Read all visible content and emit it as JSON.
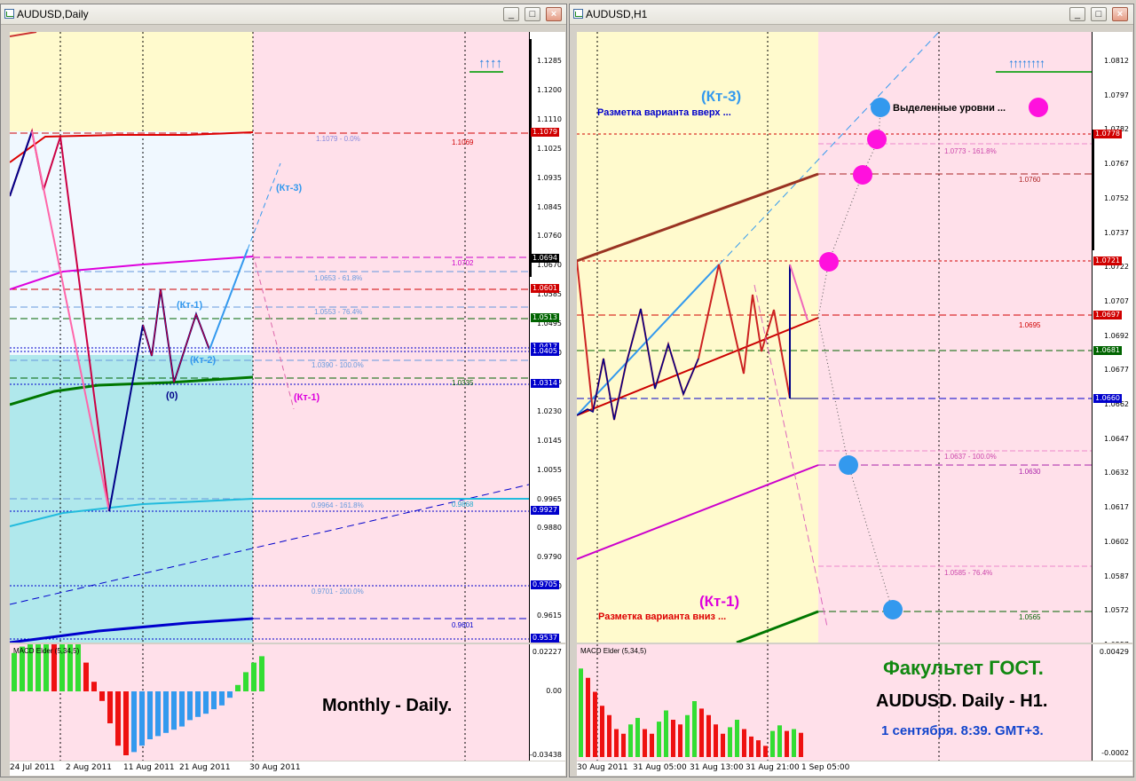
{
  "colors": {
    "pink_bg": "#ffe0ea",
    "yellow_bg": "#fffacd",
    "blue_bg": "#f0f8ff",
    "cyan_bg": "#b0e8ec",
    "window_frame": "#d4d0c8"
  },
  "left": {
    "title": "AUDUSD,Daily",
    "y_labels": [
      "1.1285",
      "1.1200",
      "1.1110",
      "1.1025",
      "1.0935",
      "1.0845",
      "1.0760",
      "1.0670",
      "1.0585",
      "1.0495",
      "1.0410",
      "1.0320",
      "1.0230",
      "1.0145",
      "1.0055",
      "0.9965",
      "0.9880",
      "0.9790",
      "0.9700",
      "0.9615",
      "0.9525"
    ],
    "price_boxes": [
      {
        "value": "1.1079",
        "color": "#d00000"
      },
      {
        "value": "1.0694",
        "color": "#000000"
      },
      {
        "value": "1.0601",
        "color": "#d00000"
      },
      {
        "value": "1.0513",
        "color": "#006400"
      },
      {
        "value": "1.0417",
        "color": "#0000cc"
      },
      {
        "value": "1.0405",
        "color": "#0000cc"
      },
      {
        "value": "1.0314",
        "color": "#0000cc"
      },
      {
        "value": "0.9927",
        "color": "#0000cc"
      },
      {
        "value": "0.9705",
        "color": "#0000cc"
      },
      {
        "value": "0.9537",
        "color": "#0000cc"
      }
    ],
    "x_labels": [
      "24 Jul 2011",
      "2 Aug 2011",
      "11 Aug 2011",
      "21 Aug 2011",
      "30 Aug 2011"
    ],
    "annotations": {
      "kt3": "(Кт-3)",
      "kt1": "(Кт-1)",
      "kt2": "(Кт-2)",
      "zero": "(0)",
      "kt1_pink": "(Кт-1)",
      "fib_1079": "1.1079 - 0.0%",
      "lvl_1069": "1.1069",
      "lvl_0702": "1.0702",
      "fib_0653": "1.0653 - 61.8%",
      "fib_0553": "1.0553 - 76.4%",
      "fib_0390": "1.0390 - 100.0%",
      "lvl_0335": "1.0335",
      "fib_9964": "0.9964 - 161.8%",
      "lvl_9868": "0.9868",
      "fib_9701": "0.9701 - 200.0%",
      "lvl_9601": "0.9601"
    },
    "arrows": "↑↑↑↑",
    "macd_title": "MACD Elder (5,34,5)",
    "macd_labels": [
      "0.02227",
      "0.00",
      "-0.03438"
    ],
    "macd_bars": [
      0.6,
      0.7,
      0.75,
      0.8,
      0.8,
      0.75,
      0.8,
      0.8,
      0.8,
      0.45,
      0.15,
      -0.15,
      -0.5,
      -0.85,
      -1,
      -0.95,
      -0.85,
      -0.75,
      -0.7,
      -0.65,
      -0.6,
      -0.55,
      -0.45,
      -0.4,
      -0.35,
      -0.28,
      -0.22,
      -0.1,
      0.1,
      0.3,
      0.45,
      0.55
    ],
    "caption": "Monthly - Daily."
  },
  "right": {
    "title": "AUDUSD,H1",
    "y_labels": [
      "1.0812",
      "1.0797",
      "1.0782",
      "1.0767",
      "1.0752",
      "1.0737",
      "1.0722",
      "1.0707",
      "1.0692",
      "1.0677",
      "1.0662",
      "1.0647",
      "1.0632",
      "1.0617",
      "1.0602",
      "1.0587",
      "1.0572",
      "1.0557"
    ],
    "price_boxes": [
      {
        "value": "1.0778",
        "color": "#d00000"
      },
      {
        "value": "1.0721",
        "color": "#d00000"
      },
      {
        "value": "1.0697",
        "color": "#d00000"
      },
      {
        "value": "1.0681",
        "color": "#006400"
      },
      {
        "value": "1.0660",
        "color": "#0000cc"
      }
    ],
    "x_labels": [
      "30 Aug 2011",
      "31 Aug 05:00",
      "31 Aug 13:00",
      "31 Aug 21:00",
      "1 Sep 05:00"
    ],
    "annotations": {
      "kt3": "(Кт-3)",
      "up_text": "Разметка варианта вверх ...",
      "levels_text": "Выделенные уровни ...",
      "fib_0773": "1.0773 - 161.8%",
      "lvl_0760": "1.0760",
      "lvl_0695": "1.0695",
      "fib_0637": "1.0637 - 100.0%",
      "lvl_0630": "1.0630",
      "fib_0585": "1.0585 - 76.4%",
      "lvl_0565": "1.0565",
      "kt1": "(Кт-1)",
      "down_text": "Разметка варианта вниз ..."
    },
    "arrows": "↑↑↑↑↑↑↑↑",
    "macd_title": "MACD Elder (5,34,5)",
    "macd_labels": [
      "0.00429",
      "-0.0002"
    ],
    "macd_bars": [
      0.95,
      0.85,
      0.7,
      0.55,
      0.45,
      0.3,
      0.25,
      0.35,
      0.42,
      0.3,
      0.25,
      0.38,
      0.5,
      0.4,
      0.35,
      0.45,
      0.6,
      0.52,
      0.45,
      0.35,
      0.25,
      0.32,
      0.4,
      0.3,
      0.22,
      0.18,
      0.12,
      0.28,
      0.34,
      0.28,
      0.3,
      0.26
    ],
    "caption1": "Факультет ГОСТ.",
    "caption2": "AUDUSD. Daily - H1.",
    "caption3": "1 сентября. 8:39. GMT+3."
  }
}
